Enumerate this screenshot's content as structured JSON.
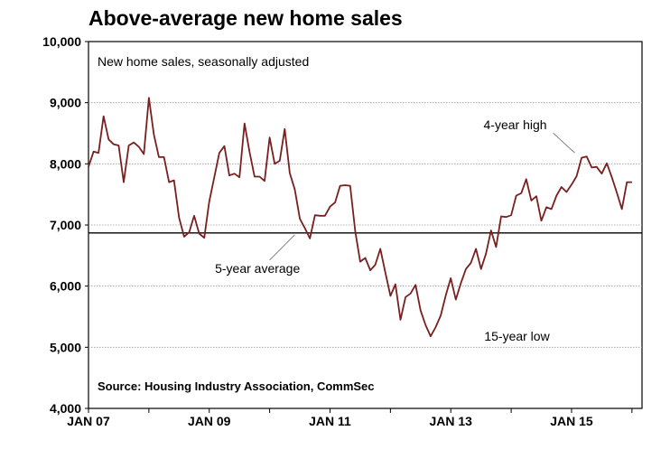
{
  "chart_data": {
    "type": "line",
    "title": "Above-average new home sales",
    "subtitle": "New home sales, seasonally adjusted",
    "source": "Source: Housing Industry Association, CommSec",
    "ylim": [
      4000,
      10000
    ],
    "y_ticks": [
      {
        "value": 10000,
        "label": "10,000"
      },
      {
        "value": 9000,
        "label": "9,000"
      },
      {
        "value": 8000,
        "label": "8,000"
      },
      {
        "value": 7000,
        "label": "7,000"
      },
      {
        "value": 6000,
        "label": "6,000"
      },
      {
        "value": 5000,
        "label": "5,000"
      },
      {
        "value": 4000,
        "label": "4,000"
      }
    ],
    "x_start": "2007-01",
    "x_end": "2016-03",
    "x_ticks": [
      {
        "date": "2007-01",
        "label": "JAN 07"
      },
      {
        "date": "2009-01",
        "label": "JAN 09"
      },
      {
        "date": "2011-01",
        "label": "JAN 11"
      },
      {
        "date": "2013-01",
        "label": "JAN 13"
      },
      {
        "date": "2015-01",
        "label": "JAN 15"
      }
    ],
    "grid": true,
    "reference_line": {
      "label": "5-year average",
      "value": 6870
    },
    "annotations": [
      {
        "text": "4-year high",
        "x": "2015-02",
        "y": 8120
      },
      {
        "text": "15-year low",
        "x": "2012-10",
        "y": 5180
      }
    ],
    "series": [
      {
        "color": "#7a1f1f",
        "x": [
          "2007-01",
          "2007-02",
          "2007-03",
          "2007-04",
          "2007-05",
          "2007-06",
          "2007-07",
          "2007-08",
          "2007-09",
          "2007-10",
          "2007-11",
          "2007-12",
          "2008-01",
          "2008-02",
          "2008-03",
          "2008-04",
          "2008-05",
          "2008-06",
          "2008-07",
          "2008-08",
          "2008-09",
          "2008-10",
          "2008-11",
          "2008-12",
          "2009-01",
          "2009-02",
          "2009-03",
          "2009-04",
          "2009-05",
          "2009-06",
          "2009-07",
          "2009-08",
          "2009-09",
          "2009-10",
          "2009-11",
          "2009-12",
          "2010-01",
          "2010-02",
          "2010-03",
          "2010-04",
          "2010-05",
          "2010-06",
          "2010-07",
          "2010-08",
          "2010-09",
          "2010-10",
          "2010-11",
          "2010-12",
          "2011-01",
          "2011-02",
          "2011-03",
          "2011-04",
          "2011-05",
          "2011-06",
          "2011-07",
          "2011-08",
          "2011-09",
          "2011-10",
          "2011-11",
          "2011-12",
          "2012-01",
          "2012-02",
          "2012-03",
          "2012-04",
          "2012-05",
          "2012-06",
          "2012-07",
          "2012-08",
          "2012-09",
          "2012-10",
          "2012-11",
          "2012-12",
          "2013-01",
          "2013-02",
          "2013-03",
          "2013-04",
          "2013-05",
          "2013-06",
          "2013-07",
          "2013-08",
          "2013-09",
          "2013-10",
          "2013-11",
          "2013-12",
          "2014-01",
          "2014-02",
          "2014-03",
          "2014-04",
          "2014-05",
          "2014-06",
          "2014-07",
          "2014-08",
          "2014-09",
          "2014-10",
          "2014-11",
          "2014-12",
          "2015-01",
          "2015-02",
          "2015-03",
          "2015-04",
          "2015-05",
          "2015-06",
          "2015-07",
          "2015-08",
          "2015-09",
          "2015-10",
          "2015-11",
          "2015-12",
          "2016-01"
        ],
        "values": [
          7950,
          8200,
          8180,
          8780,
          8400,
          8320,
          8300,
          7700,
          8300,
          8350,
          8280,
          8160,
          9080,
          8480,
          8110,
          8110,
          7700,
          7730,
          7120,
          6810,
          6880,
          7150,
          6860,
          6790,
          7380,
          7780,
          8180,
          8290,
          7810,
          7840,
          7780,
          8660,
          8200,
          7790,
          7790,
          7720,
          8430,
          8000,
          8050,
          8570,
          7850,
          7580,
          7100,
          6950,
          6780,
          7160,
          7150,
          7150,
          7300,
          7370,
          7640,
          7650,
          7640,
          6900,
          6400,
          6460,
          6260,
          6350,
          6610,
          6220,
          5840,
          6030,
          5450,
          5820,
          5880,
          6020,
          5600,
          5360,
          5180,
          5330,
          5520,
          5850,
          6130,
          5780,
          6050,
          6280,
          6380,
          6610,
          6280,
          6530,
          6910,
          6640,
          7140,
          7130,
          7160,
          7480,
          7520,
          7750,
          7400,
          7470,
          7070,
          7290,
          7260,
          7480,
          7620,
          7540,
          7660,
          7800,
          8100,
          8120,
          7940,
          7950,
          7840,
          8010,
          7780,
          7530,
          7260,
          7700,
          7700
        ]
      }
    ]
  }
}
